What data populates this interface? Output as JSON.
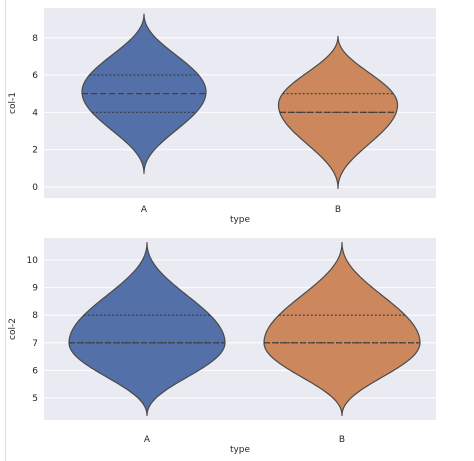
{
  "colors": {
    "A": "#5470a8",
    "B": "#cc875c",
    "plot_background": "#eaeaf2"
  },
  "chart_data": [
    {
      "type": "violin",
      "xlabel": "type",
      "ylabel": "col-1",
      "categories": [
        "A",
        "B"
      ],
      "ylim": [
        -0.6,
        9.6
      ],
      "yticks": [
        0,
        2,
        4,
        6,
        8
      ],
      "grid": true,
      "series": [
        {
          "category": "A",
          "min": 0.7,
          "q1": 4.0,
          "median": 5.0,
          "q3": 6.0,
          "max": 9.3,
          "peak": 5.1,
          "halfwidth": 1.0
        },
        {
          "category": "B",
          "min": -0.1,
          "q1": 4.0,
          "median": 4.0,
          "q3": 5.0,
          "max": 8.1,
          "peak": 4.4,
          "halfwidth": 0.96
        }
      ]
    },
    {
      "type": "violin",
      "xlabel": "type",
      "ylabel": "col-2",
      "categories": [
        "A",
        "B"
      ],
      "ylim": [
        4.2,
        10.8
      ],
      "yticks": [
        5,
        6,
        7,
        8,
        9,
        10
      ],
      "grid": true,
      "series": [
        {
          "category": "A",
          "min": 4.35,
          "q1": 7.0,
          "median": 7.0,
          "q3": 8.0,
          "max": 10.65,
          "peak": 7.0,
          "halfwidth": 1.0
        },
        {
          "category": "B",
          "min": 4.35,
          "q1": 7.0,
          "median": 7.0,
          "q3": 8.0,
          "max": 10.65,
          "peak": 7.0,
          "halfwidth": 1.0
        }
      ]
    }
  ]
}
